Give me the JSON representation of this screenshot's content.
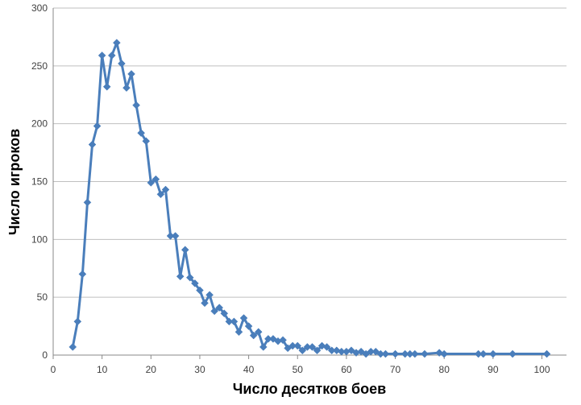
{
  "chart_data": {
    "type": "line",
    "title": "",
    "xlabel": "Число десятков боев",
    "ylabel": "Число игроков",
    "xlim": [
      0,
      110
    ],
    "ylim": [
      0,
      300
    ],
    "xticks": [
      0,
      10,
      20,
      30,
      40,
      50,
      60,
      70,
      80,
      90,
      100
    ],
    "yticks": [
      0,
      50,
      100,
      150,
      200,
      250,
      300
    ],
    "grid": "horizontal",
    "legend": "none",
    "series": [
      {
        "color": "#4a7ebb",
        "marker": "diamond",
        "points": [
          [
            4,
            7
          ],
          [
            5,
            29
          ],
          [
            6,
            70
          ],
          [
            7,
            132
          ],
          [
            8,
            182
          ],
          [
            9,
            198
          ],
          [
            10,
            259
          ],
          [
            11,
            232
          ],
          [
            12,
            259
          ],
          [
            13,
            270
          ],
          [
            14,
            252
          ],
          [
            15,
            231
          ],
          [
            16,
            243
          ],
          [
            17,
            216
          ],
          [
            18,
            192
          ],
          [
            19,
            185
          ],
          [
            20,
            149
          ],
          [
            21,
            152
          ],
          [
            22,
            139
          ],
          [
            23,
            143
          ],
          [
            24,
            103
          ],
          [
            25,
            103
          ],
          [
            26,
            68
          ],
          [
            27,
            91
          ],
          [
            28,
            67
          ],
          [
            29,
            62
          ],
          [
            30,
            56
          ],
          [
            31,
            45
          ],
          [
            32,
            52
          ],
          [
            33,
            38
          ],
          [
            34,
            41
          ],
          [
            35,
            36
          ],
          [
            36,
            29
          ],
          [
            37,
            29
          ],
          [
            38,
            20
          ],
          [
            39,
            32
          ],
          [
            40,
            25
          ],
          [
            41,
            17
          ],
          [
            42,
            20
          ],
          [
            43,
            7
          ],
          [
            44,
            14
          ],
          [
            45,
            14
          ],
          [
            46,
            12
          ],
          [
            47,
            13
          ],
          [
            48,
            6
          ],
          [
            49,
            8
          ],
          [
            50,
            8
          ],
          [
            51,
            4
          ],
          [
            52,
            7
          ],
          [
            53,
            7
          ],
          [
            54,
            4
          ],
          [
            55,
            8
          ],
          [
            56,
            7
          ],
          [
            57,
            4
          ],
          [
            58,
            4
          ],
          [
            59,
            3
          ],
          [
            60,
            3
          ],
          [
            61,
            4
          ],
          [
            62,
            2
          ],
          [
            63,
            3
          ],
          [
            64,
            1
          ],
          [
            65,
            3
          ],
          [
            66,
            3
          ],
          [
            67,
            1
          ],
          [
            68,
            1
          ],
          [
            70,
            1
          ],
          [
            72,
            1
          ],
          [
            73,
            1
          ],
          [
            74,
            1
          ],
          [
            76,
            1
          ],
          [
            79,
            2
          ],
          [
            80,
            1
          ],
          [
            87,
            1
          ],
          [
            88,
            1
          ],
          [
            90,
            1
          ],
          [
            94,
            1
          ],
          [
            101,
            1
          ]
        ]
      }
    ]
  }
}
